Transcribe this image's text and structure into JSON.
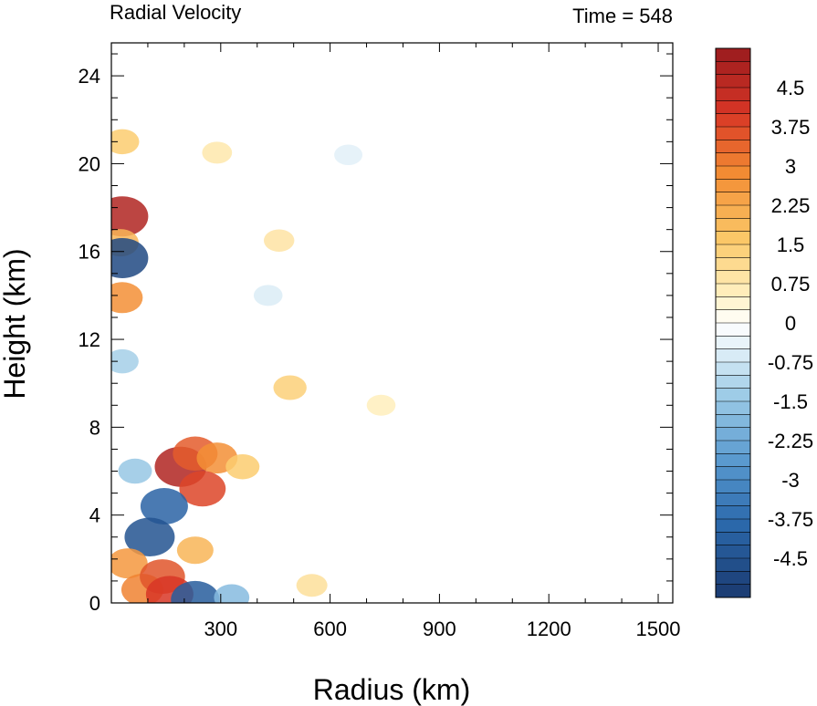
{
  "chart_data": {
    "type": "heatmap",
    "title_left": "Radial Velocity",
    "title_right": "Time = 548",
    "xlabel": "Radius (km)",
    "ylabel": "Height (km)",
    "xlim": [
      0,
      1540
    ],
    "ylim": [
      0,
      25.5
    ],
    "xticks": [
      300,
      600,
      900,
      1200,
      1500
    ],
    "yticks": [
      0,
      4,
      8,
      12,
      16,
      20,
      24
    ],
    "colorbar": {
      "min": -5.25,
      "max": 5.25,
      "step": 0.25,
      "labels": [
        "4.5",
        "3.75",
        "3",
        "2.25",
        "1.5",
        "0.75",
        "0",
        "-0.75",
        "-1.5",
        "-2.25",
        "-3",
        "-3.75",
        "-4.5"
      ],
      "label_values": [
        4.5,
        3.75,
        3,
        2.25,
        1.5,
        0.75,
        0,
        -0.75,
        -1.5,
        -2.25,
        -3,
        -3.75,
        -4.5
      ],
      "colors": [
        "#1a3a70",
        "#2c6aad",
        "#5b9bd0",
        "#9ccbe6",
        "#e2f0f8",
        "#ffffff",
        "#fff2c4",
        "#fbc868",
        "#f28a32",
        "#d83626",
        "#9a1b1e"
      ],
      "color_stops": [
        -5.25,
        -3.8,
        -2.6,
        -1.4,
        -0.5,
        0,
        0.5,
        1.6,
        2.9,
        4.0,
        5.25
      ]
    },
    "features": [
      {
        "r": 30,
        "z": 17.6,
        "v": 4.8
      },
      {
        "r": 25,
        "z": 16.4,
        "v": 2.0
      },
      {
        "r": 30,
        "z": 15.7,
        "v": -4.8
      },
      {
        "r": 30,
        "z": 13.9,
        "v": 2.8
      },
      {
        "r": 30,
        "z": 11.0,
        "v": -1.3
      },
      {
        "r": 30,
        "z": 21.0,
        "v": 1.5
      },
      {
        "r": 190,
        "z": 6.2,
        "v": 4.8
      },
      {
        "r": 230,
        "z": 6.8,
        "v": 3.5
      },
      {
        "r": 290,
        "z": 6.6,
        "v": 2.8
      },
      {
        "r": 360,
        "z": 6.2,
        "v": 1.5
      },
      {
        "r": 250,
        "z": 5.2,
        "v": 3.8
      },
      {
        "r": 145,
        "z": 4.4,
        "v": -4.0
      },
      {
        "r": 105,
        "z": 3.0,
        "v": -4.5
      },
      {
        "r": 65,
        "z": 6.0,
        "v": -1.5
      },
      {
        "r": 45,
        "z": 1.8,
        "v": 2.6
      },
      {
        "r": 85,
        "z": 0.6,
        "v": 3.0
      },
      {
        "r": 140,
        "z": 1.2,
        "v": 3.6
      },
      {
        "r": 160,
        "z": 0.4,
        "v": 4.0
      },
      {
        "r": 230,
        "z": 0.15,
        "v": -4.2
      },
      {
        "r": 330,
        "z": 0.25,
        "v": -1.8
      },
      {
        "r": 230,
        "z": 2.4,
        "v": 2.0
      },
      {
        "r": 490,
        "z": 9.8,
        "v": 1.4
      },
      {
        "r": 460,
        "z": 16.5,
        "v": 0.9
      },
      {
        "r": 290,
        "z": 20.5,
        "v": 0.8
      },
      {
        "r": 740,
        "z": 9.0,
        "v": 0.6
      },
      {
        "r": 650,
        "z": 20.4,
        "v": -0.5
      },
      {
        "r": 430,
        "z": 14.0,
        "v": -0.6
      },
      {
        "r": 550,
        "z": 0.8,
        "v": 1.0
      }
    ]
  }
}
